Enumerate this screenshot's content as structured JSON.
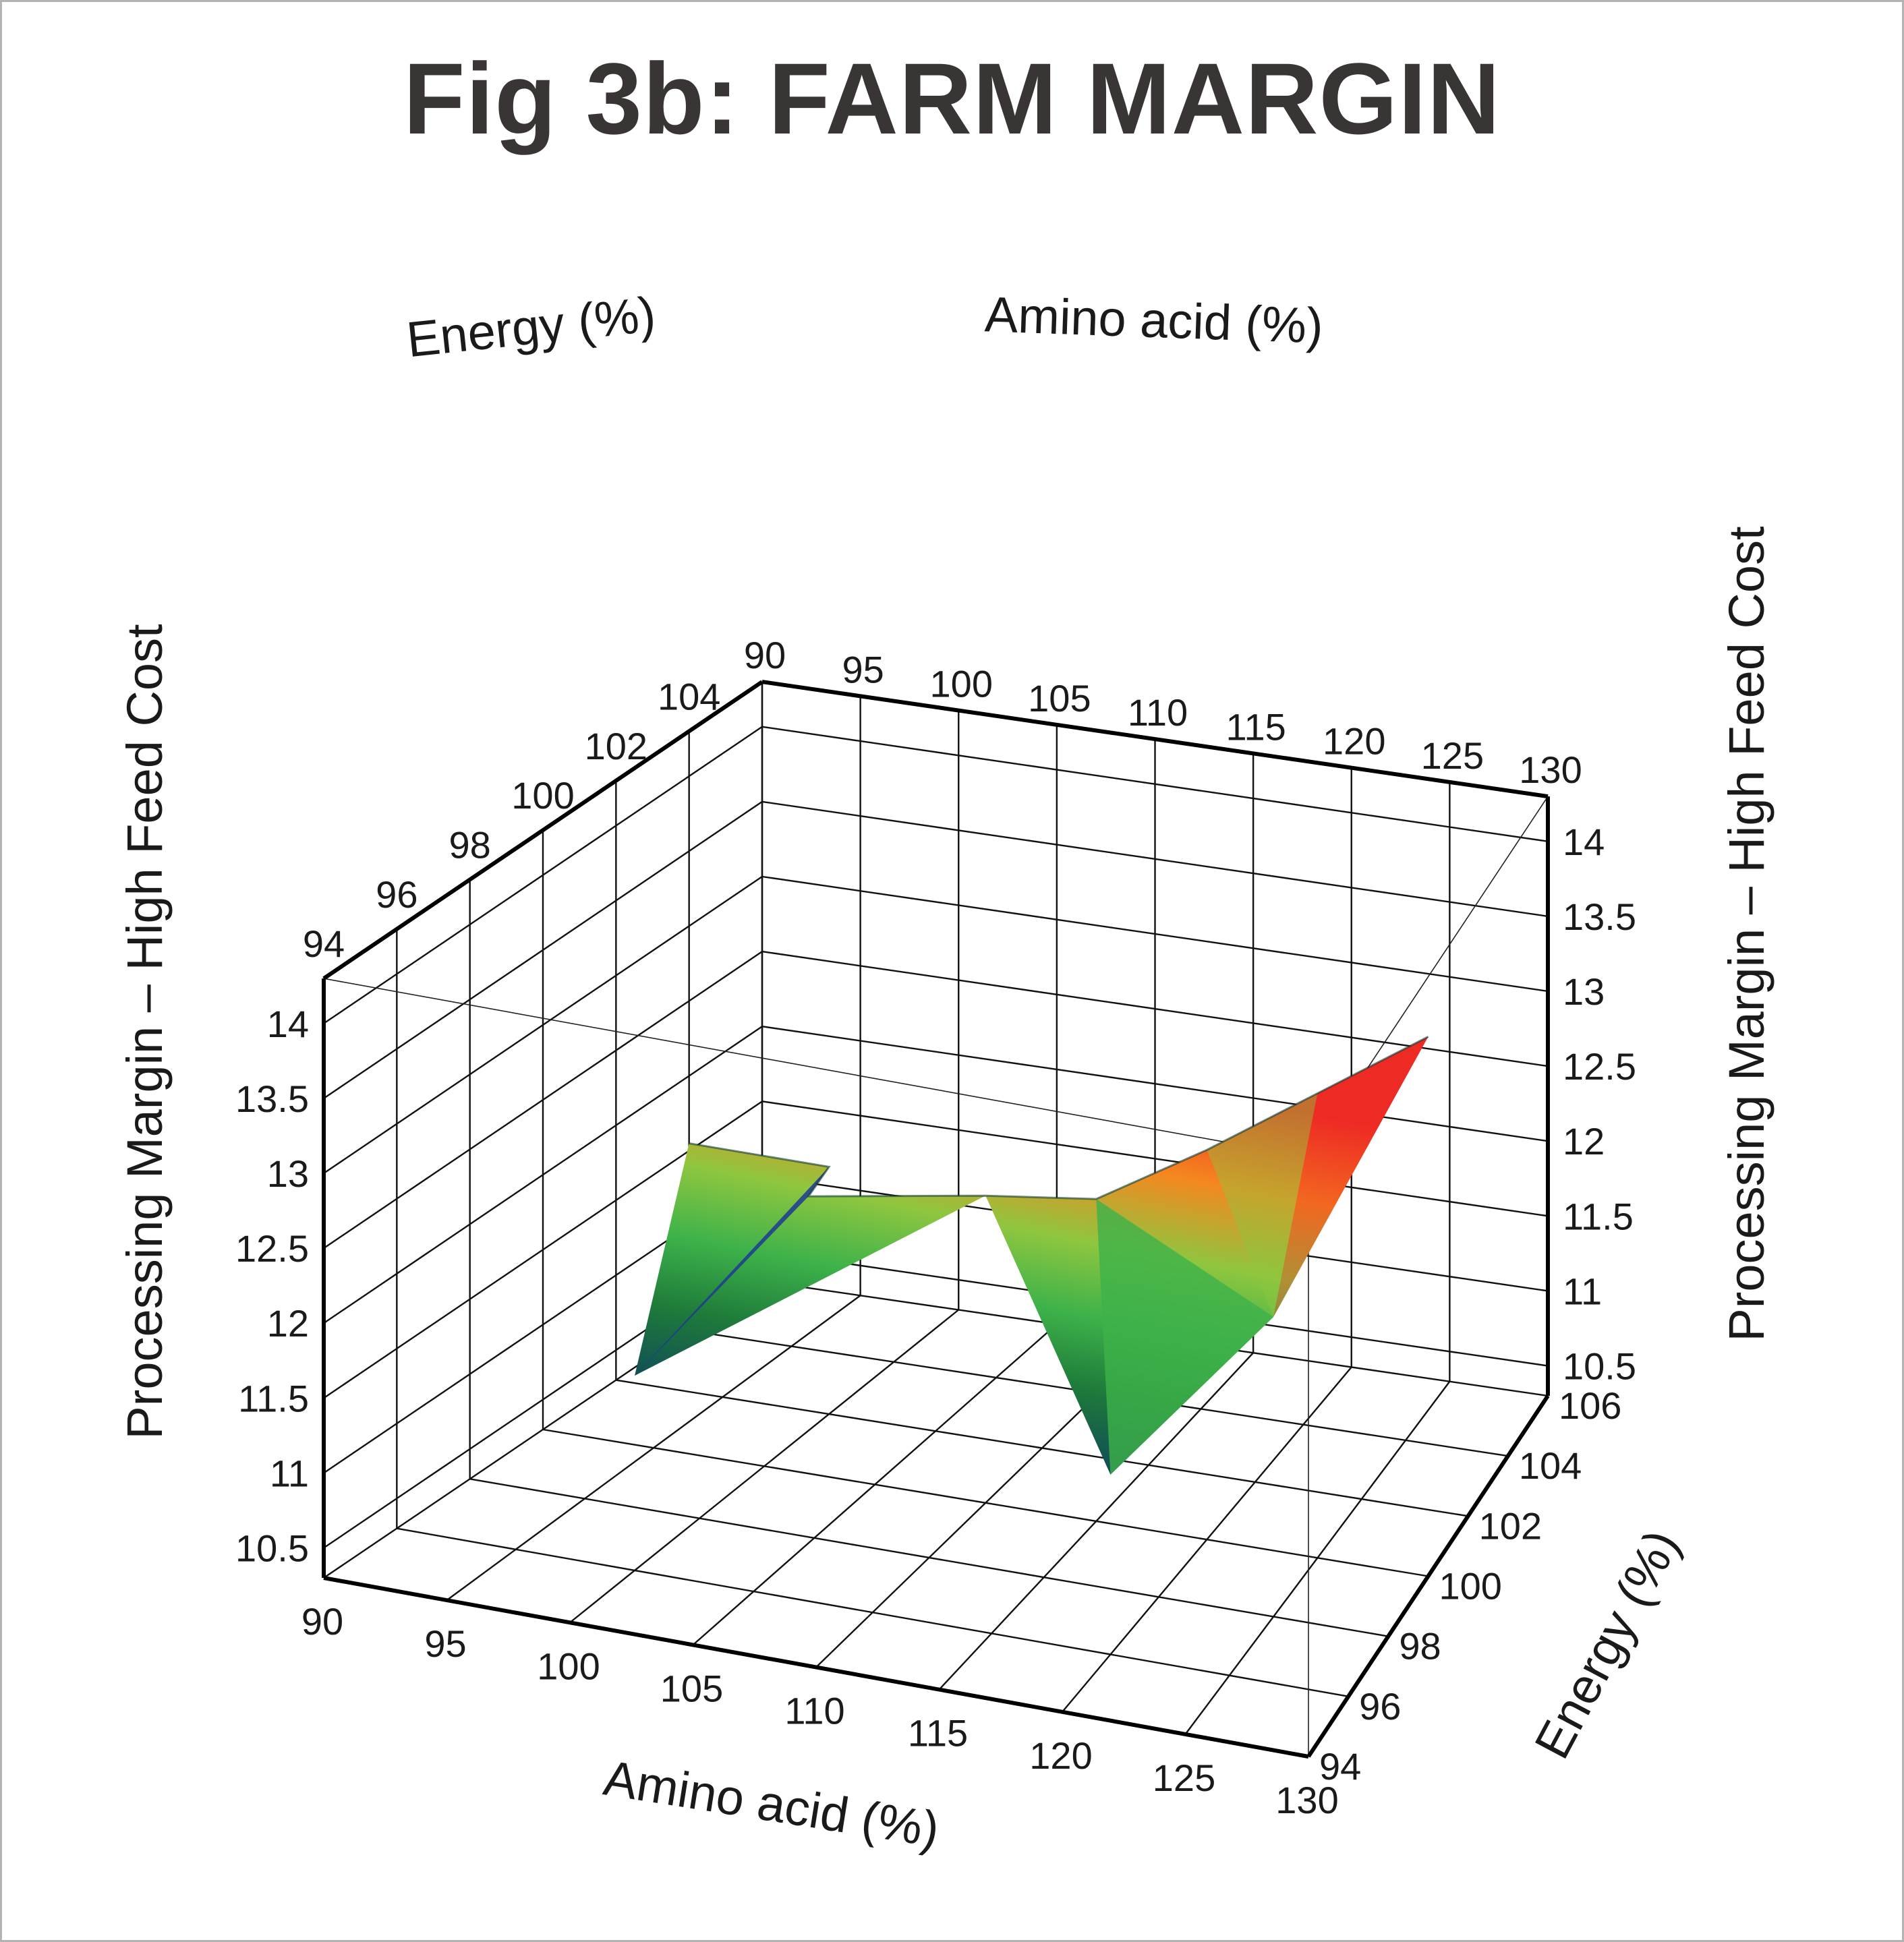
{
  "chart_data": {
    "type": "surface",
    "title": "Fig 3b: FARM MARGIN",
    "xlabel": "Amino acid (%)",
    "ylabel": "Energy (%)",
    "zlabel": "Processing Margin – High Feed Cost",
    "x_ticks": [
      "90",
      "95",
      "100",
      "105",
      "110",
      "115",
      "120",
      "125",
      "130"
    ],
    "y_ticks": [
      "94",
      "96",
      "98",
      "100",
      "102",
      "104",
      "106"
    ],
    "y_ticks_top": [
      "94",
      "96",
      "98",
      "100",
      "102",
      "104"
    ],
    "z_ticks": [
      "10.5",
      "11",
      "11.5",
      "12",
      "12.5",
      "13",
      "13.5",
      "14"
    ],
    "xlim": [
      90,
      130
    ],
    "ylim": [
      94,
      106
    ],
    "zlim": [
      10.3,
      14.3
    ],
    "grid": true,
    "colormap": [
      "#1f3a93",
      "#0f4a5a",
      "#1e7a3a",
      "#3db24a",
      "#8ec63f",
      "#f5871f",
      "#ee2a24"
    ],
    "surface_points": [
      {
        "x": 90,
        "y": 104,
        "z": 11.55
      },
      {
        "x": 100,
        "y": 102,
        "z": 11.95
      },
      {
        "x": 102,
        "y": 100,
        "z": 12.15
      },
      {
        "x": 110,
        "y": 100,
        "z": 12.35
      },
      {
        "x": 115,
        "y": 100,
        "z": 12.45
      },
      {
        "x": 120,
        "y": 100,
        "z": 12.9
      },
      {
        "x": 125,
        "y": 100,
        "z": 13.4
      },
      {
        "x": 130,
        "y": 100,
        "z": 13.9
      },
      {
        "x": 100,
        "y": 96,
        "z": 11.6
      },
      {
        "x": 120,
        "y": 96,
        "z": 11.5
      },
      {
        "x": 125,
        "y": 98,
        "z": 12.3
      }
    ]
  }
}
